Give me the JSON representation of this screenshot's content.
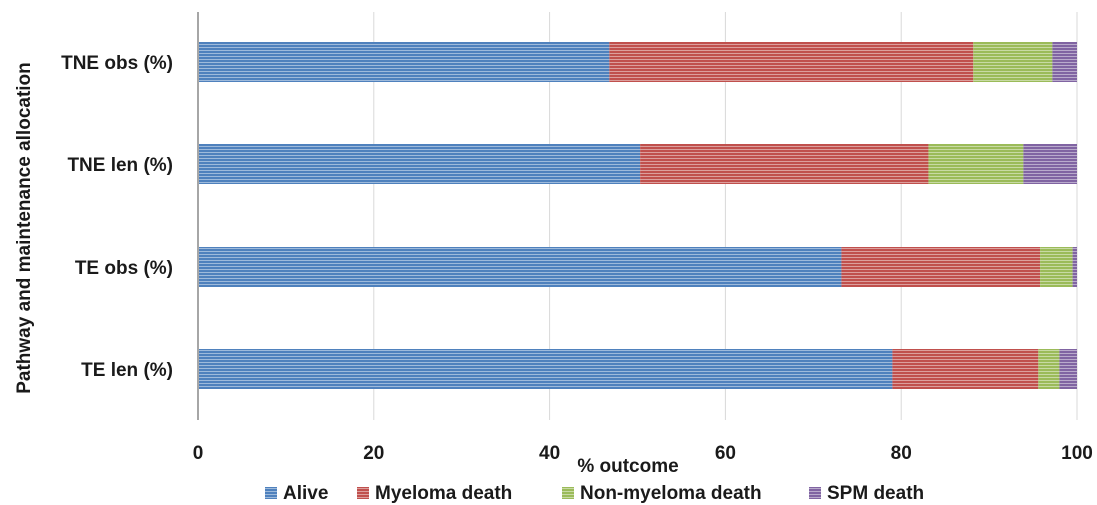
{
  "chart_data": {
    "type": "bar",
    "orientation": "horizontal",
    "stacked": true,
    "categories": [
      "TNE obs (%)",
      "TNE len (%)",
      "TE obs (%)",
      "TE len (%)"
    ],
    "series": [
      {
        "name": "Alive",
        "color": "#4F81BD",
        "values": [
          46.8,
          50.3,
          73.2,
          79.0
        ]
      },
      {
        "name": "Myeloma death",
        "color": "#C0504D",
        "values": [
          41.4,
          32.8,
          22.6,
          16.6
        ]
      },
      {
        "name": "Non-myeloma death",
        "color": "#9BBB59",
        "values": [
          9.0,
          10.8,
          3.7,
          2.4
        ]
      },
      {
        "name": "SPM death",
        "color": "#8064A2",
        "values": [
          2.8,
          6.1,
          0.5,
          2.0
        ]
      }
    ],
    "xlabel": "% outcome",
    "ylabel": "Pathway and maintenance allocation",
    "xlim": [
      0,
      100
    ],
    "xticks": [
      "0",
      "20",
      "40",
      "60",
      "80",
      "100"
    ],
    "grid": "vertical",
    "legend": "bottom"
  }
}
